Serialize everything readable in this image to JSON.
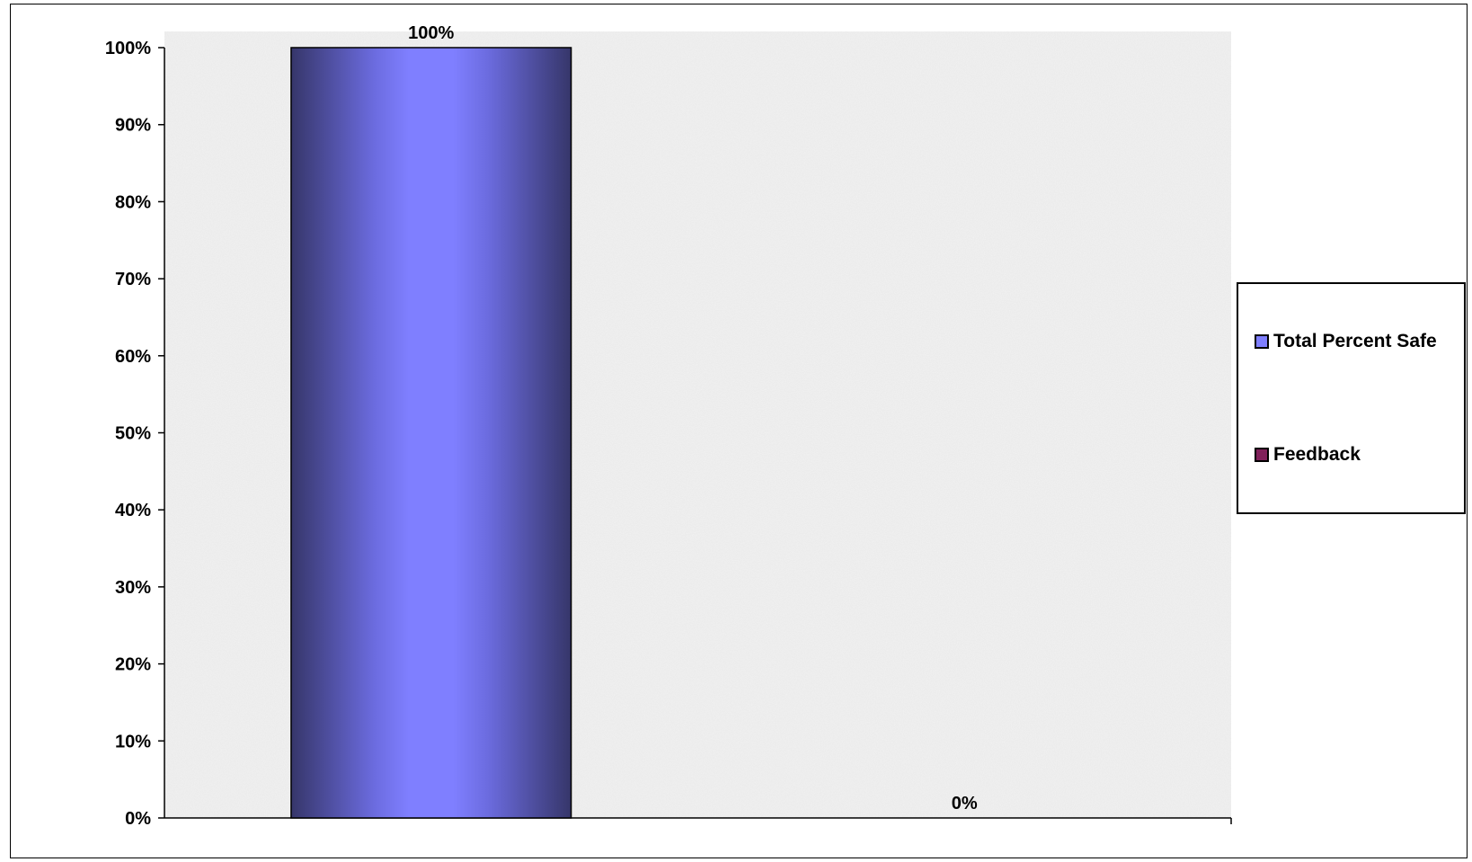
{
  "chart_data": {
    "type": "bar",
    "categories": [
      "Total Percent Safe",
      "Feedback"
    ],
    "series": [
      {
        "name": "Total Percent Safe",
        "values": [
          100,
          null
        ],
        "color": "#7f7fff"
      },
      {
        "name": "Feedback",
        "values": [
          null,
          0
        ],
        "color": "#80205a"
      }
    ],
    "data_labels": [
      "100%",
      "0%"
    ],
    "ylim": [
      0,
      100
    ],
    "yticks": [
      0,
      10,
      20,
      30,
      40,
      50,
      60,
      70,
      80,
      90,
      100
    ],
    "ytick_labels": [
      "0%",
      "10%",
      "20%",
      "30%",
      "40%",
      "50%",
      "60%",
      "70%",
      "80%",
      "90%",
      "100%"
    ],
    "grid": false,
    "legend_position": "right",
    "plot_background": "textured-gray"
  },
  "legend": {
    "items": [
      {
        "label": "Total Percent Safe",
        "color": "#7f7fff"
      },
      {
        "label": "Feedback",
        "color": "#80205a"
      }
    ]
  }
}
